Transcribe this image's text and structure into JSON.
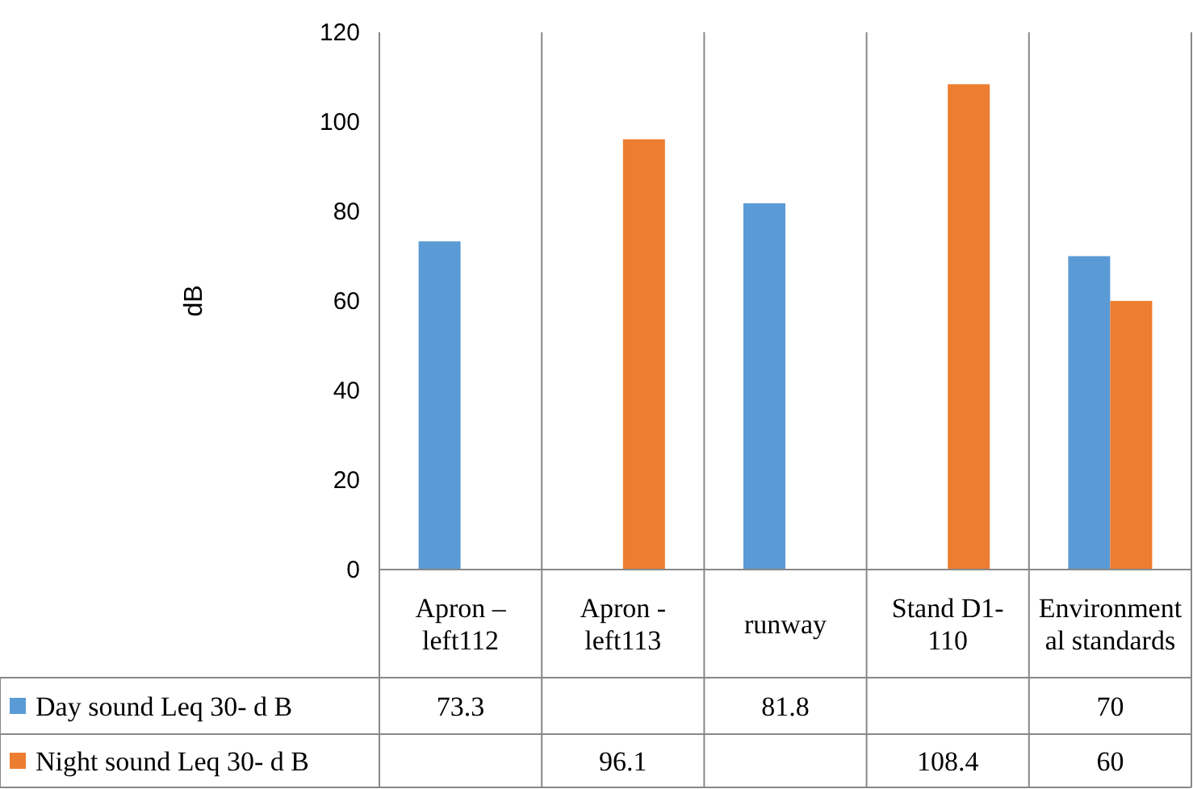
{
  "chart_data": {
    "type": "bar",
    "ylabel": "dB",
    "categories": [
      "Apron – left112",
      "Apron - left113",
      "runway",
      "Stand D1-110",
      "Environmental standards"
    ],
    "series": [
      {
        "name": "Day sound Leq 30- d B",
        "color": "#5b9bd5",
        "values": [
          73.3,
          null,
          81.8,
          null,
          70
        ]
      },
      {
        "name": "Night sound Leq 30- d B",
        "color": "#ed7d31",
        "values": [
          null,
          96.1,
          null,
          108.4,
          60
        ]
      }
    ],
    "ylim": [
      0,
      120
    ],
    "yticks": [
      0,
      20,
      40,
      60,
      80,
      100,
      120
    ],
    "grid": "x",
    "legend": "bottom",
    "data_labels": true
  }
}
